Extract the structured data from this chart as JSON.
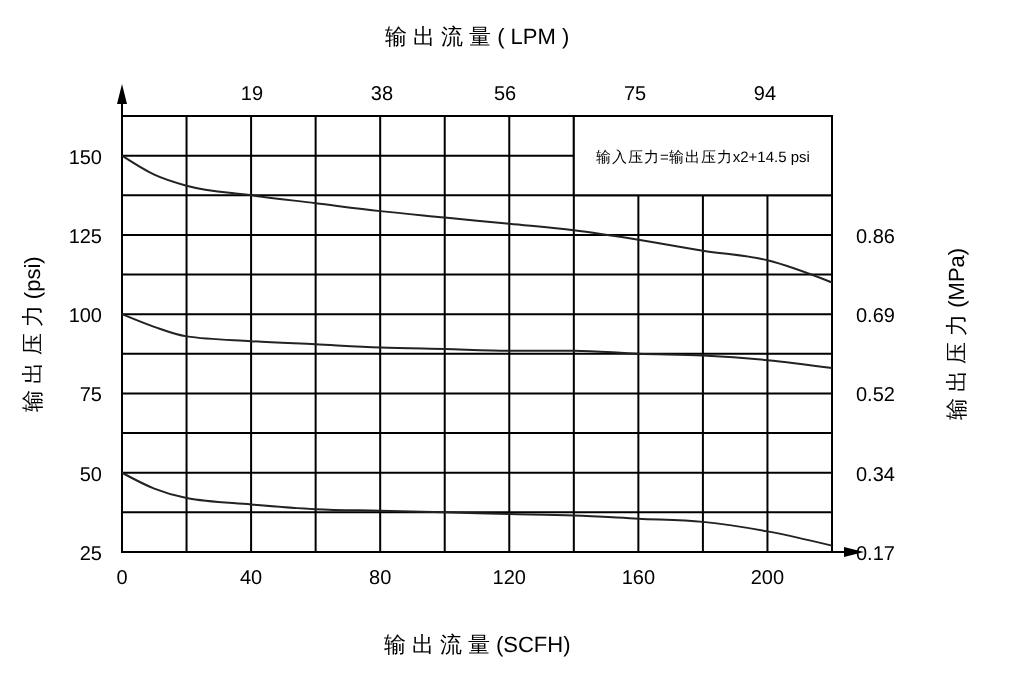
{
  "chart_data": {
    "type": "line",
    "xlabel": "输 出 流 量 (SCFH)",
    "x2label": "输 出 流 量 ( LPM )",
    "ylabel": "输 出 压 力 (psi)",
    "y2label": "输 出 压 力 (MPa)",
    "annotations": [
      "输入压力=输出压力x2+14.5 psi"
    ],
    "x": [
      0,
      10,
      20,
      40,
      60,
      80,
      100,
      120,
      140,
      160,
      180,
      200,
      220
    ],
    "series": [
      {
        "color": "#222222",
        "values": [
          150,
          144,
          140.5,
          137.5,
          135,
          132.5,
          130.5,
          128.5,
          126.5,
          123.5,
          120,
          117,
          110
        ]
      },
      {
        "color": "#222222",
        "values": [
          100,
          96,
          93,
          91.5,
          90.5,
          89.5,
          89,
          88.5,
          88.5,
          87.5,
          87,
          85.5,
          83
        ]
      },
      {
        "color": "#222222",
        "values": [
          50,
          45,
          42,
          40,
          38.5,
          38,
          37.5,
          37,
          36.5,
          35.5,
          34.5,
          31.5,
          27
        ]
      }
    ],
    "xlim": [
      0,
      220
    ],
    "xticks": [
      0,
      {
        "value": 20,
        "label": null
      },
      40,
      {
        "value": 60,
        "label": null
      },
      80,
      {
        "value": 100,
        "label": null
      },
      120,
      {
        "value": 140,
        "label": null
      },
      160,
      {
        "value": 180,
        "label": null
      },
      200
    ],
    "ylim": [
      25,
      162.5
    ],
    "yticks": [
      25,
      {
        "value": 37.5,
        "label": null
      },
      50,
      {
        "value": 62.5,
        "label": null
      },
      75,
      {
        "value": 87.5,
        "label": null
      },
      100,
      {
        "value": 112.5,
        "label": null
      },
      125,
      {
        "value": 137.5,
        "label": null
      },
      150
    ],
    "x2lim": [
      0,
      103.8
    ],
    "x2ticks": [
      19,
      38,
      56,
      75,
      94
    ],
    "y2lim": [
      0.1724,
      1.1204
    ],
    "y2ticks": [
      {
        "value": 0.1724,
        "label": "0.17"
      },
      {
        "value": 0.3447,
        "label": "0.34"
      },
      {
        "value": 0.5171,
        "label": "0.52"
      },
      {
        "value": 0.6895,
        "label": "0.69"
      },
      {
        "value": 0.8618,
        "label": "0.86"
      }
    ],
    "grid": true,
    "marker": "none",
    "line_style": "solid"
  }
}
